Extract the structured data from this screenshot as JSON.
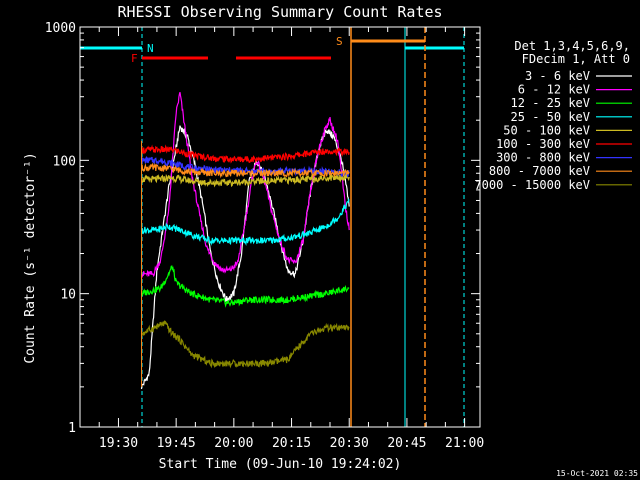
{
  "chart_data": {
    "type": "line",
    "title": "RHESSI Observing Summary Count Rates",
    "xlabel": "Start Time (09-Jun-10 19:24:02)",
    "ylabel": "Count Rate (s⁻¹ detector⁻¹)",
    "yscale": "log",
    "ylim": [
      1,
      1000
    ],
    "xlim_minutes_after_start": [
      -4.0,
      100.0
    ],
    "x_ticks": [
      {
        "label": "19:30",
        "minute": 6.0
      },
      {
        "label": "19:45",
        "minute": 21.0
      },
      {
        "label": "20:00",
        "minute": 36.0
      },
      {
        "label": "20:15",
        "minute": 51.0
      },
      {
        "label": "20:30",
        "minute": 66.0
      },
      {
        "label": "20:45",
        "minute": 81.0
      },
      {
        "label": "21:00",
        "minute": 96.0
      }
    ],
    "y_ticks": [
      {
        "label": "1",
        "value": 1
      },
      {
        "label": "10",
        "value": 10
      },
      {
        "label": "100",
        "value": 100
      },
      {
        "label": "1000",
        "value": 1000
      }
    ],
    "legend_header": [
      "Det 1,3,4,5,6,9,",
      "FDecim 1, Att 0"
    ],
    "legend_position": "top-right",
    "series": [
      {
        "name": "3 - 6 keV",
        "color": "#ffffff",
        "points": [
          [
            12,
            2
          ],
          [
            14,
            2.5
          ],
          [
            16,
            15
          ],
          [
            19,
            60
          ],
          [
            22,
            180
          ],
          [
            24,
            150
          ],
          [
            26,
            90
          ],
          [
            28,
            45
          ],
          [
            30,
            20
          ],
          [
            32,
            12
          ],
          [
            34,
            9
          ],
          [
            36,
            10
          ],
          [
            38,
            20
          ],
          [
            40,
            70
          ],
          [
            42,
            100
          ],
          [
            44,
            75
          ],
          [
            46,
            45
          ],
          [
            48,
            25
          ],
          [
            50,
            15
          ],
          [
            52,
            14
          ],
          [
            54,
            25
          ],
          [
            56,
            60
          ],
          [
            58,
            120
          ],
          [
            60,
            170
          ],
          [
            62,
            150
          ],
          [
            64,
            100
          ],
          [
            65,
            70
          ],
          [
            66,
            45
          ]
        ]
      },
      {
        "name": "6 - 12 keV",
        "color": "#ff00ff",
        "points": [
          [
            12,
            14
          ],
          [
            15,
            14
          ],
          [
            17,
            18
          ],
          [
            19,
            40
          ],
          [
            21,
            230
          ],
          [
            22,
            320
          ],
          [
            23,
            200
          ],
          [
            25,
            80
          ],
          [
            27,
            40
          ],
          [
            29,
            22
          ],
          [
            31,
            17
          ],
          [
            33,
            15
          ],
          [
            35,
            15
          ],
          [
            37,
            17
          ],
          [
            39,
            35
          ],
          [
            41,
            80
          ],
          [
            42,
            100
          ],
          [
            44,
            70
          ],
          [
            46,
            40
          ],
          [
            48,
            25
          ],
          [
            50,
            18
          ],
          [
            52,
            17
          ],
          [
            54,
            25
          ],
          [
            56,
            60
          ],
          [
            58,
            120
          ],
          [
            60,
            180
          ],
          [
            61,
            200
          ],
          [
            63,
            140
          ],
          [
            64,
            80
          ],
          [
            65,
            45
          ],
          [
            66,
            30
          ]
        ]
      },
      {
        "name": "12 - 25 keV",
        "color": "#00ff00",
        "points": [
          [
            12,
            10
          ],
          [
            17,
            11
          ],
          [
            19,
            14
          ],
          [
            20,
            16
          ],
          [
            21,
            12
          ],
          [
            25,
            10
          ],
          [
            30,
            9
          ],
          [
            35,
            8.5
          ],
          [
            40,
            9
          ],
          [
            45,
            9
          ],
          [
            50,
            9
          ],
          [
            55,
            9.5
          ],
          [
            60,
            10
          ],
          [
            66,
            11
          ]
        ]
      },
      {
        "name": "25 - 50 keV",
        "color": "#00ffff",
        "points": [
          [
            12,
            30
          ],
          [
            16,
            30
          ],
          [
            19,
            32
          ],
          [
            22,
            30
          ],
          [
            26,
            27
          ],
          [
            30,
            25
          ],
          [
            35,
            25
          ],
          [
            40,
            25
          ],
          [
            45,
            25
          ],
          [
            50,
            26
          ],
          [
            55,
            28
          ],
          [
            60,
            32
          ],
          [
            63,
            37
          ],
          [
            66,
            50
          ]
        ]
      },
      {
        "name": "50 - 100 keV",
        "color": "#ccbb22",
        "points": [
          [
            12,
            72
          ],
          [
            16,
            72
          ],
          [
            20,
            74
          ],
          [
            25,
            70
          ],
          [
            30,
            68
          ],
          [
            35,
            68
          ],
          [
            40,
            69
          ],
          [
            45,
            70
          ],
          [
            50,
            71
          ],
          [
            55,
            72
          ],
          [
            60,
            74
          ],
          [
            66,
            75
          ]
        ]
      },
      {
        "name": "100 - 300 keV",
        "color": "#ff0000",
        "points": [
          [
            12,
            120
          ],
          [
            16,
            120
          ],
          [
            20,
            120
          ],
          [
            25,
            110
          ],
          [
            30,
            104
          ],
          [
            35,
            102
          ],
          [
            40,
            102
          ],
          [
            45,
            104
          ],
          [
            50,
            107
          ],
          [
            55,
            112
          ],
          [
            60,
            118
          ],
          [
            66,
            115
          ]
        ]
      },
      {
        "name": "300 - 800 keV",
        "color": "#3333ff",
        "points": [
          [
            12,
            100
          ],
          [
            16,
            100
          ],
          [
            20,
            95
          ],
          [
            25,
            88
          ],
          [
            30,
            85
          ],
          [
            35,
            84
          ],
          [
            40,
            83
          ],
          [
            45,
            82
          ],
          [
            50,
            83
          ],
          [
            55,
            83
          ],
          [
            60,
            82
          ],
          [
            66,
            80
          ]
        ]
      },
      {
        "name": "800 - 7000 keV",
        "color": "#ff8c1a",
        "points": [
          [
            12,
            88
          ],
          [
            16,
            88
          ],
          [
            20,
            86
          ],
          [
            25,
            82
          ],
          [
            30,
            80
          ],
          [
            35,
            80
          ],
          [
            40,
            80
          ],
          [
            45,
            80
          ],
          [
            50,
            80
          ],
          [
            55,
            80
          ],
          [
            60,
            80
          ],
          [
            66,
            80
          ]
        ]
      },
      {
        "name": "7000 - 15000 keV",
        "color": "#888800",
        "points": [
          [
            12,
            5
          ],
          [
            15,
            5.5
          ],
          [
            18,
            6
          ],
          [
            20,
            5
          ],
          [
            22,
            4.5
          ],
          [
            25,
            3.5
          ],
          [
            30,
            3
          ],
          [
            35,
            3
          ],
          [
            40,
            3
          ],
          [
            45,
            3
          ],
          [
            50,
            3.2
          ],
          [
            53,
            4
          ],
          [
            56,
            5
          ],
          [
            60,
            5.5
          ],
          [
            66,
            5.5
          ]
        ]
      }
    ],
    "annotations": [
      {
        "label": "N",
        "color": "#00ffff"
      },
      {
        "label": "F",
        "color": "#ff0000"
      },
      {
        "label": "S",
        "color": "#ff8c1a"
      }
    ],
    "timestamp": "15-Oct-2021 02:35"
  }
}
